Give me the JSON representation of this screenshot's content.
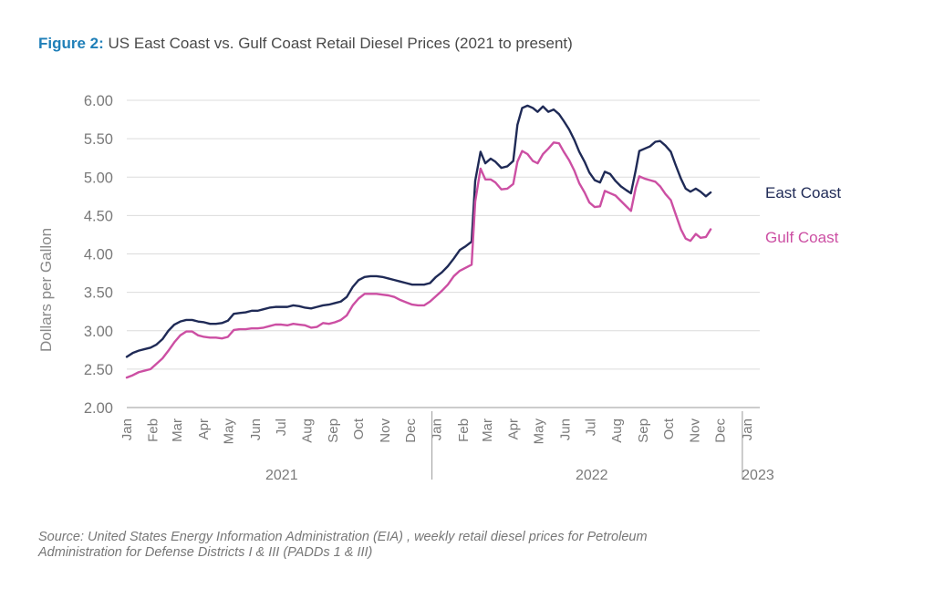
{
  "figure": {
    "label": "Figure 2:",
    "title": "US East Coast vs. Gulf Coast Retail Diesel Prices (2021 to present)"
  },
  "source": {
    "line1": "Source: United States Energy Information Administration (EIA) , weekly retail diesel prices for Petroleum",
    "line2": "Administration for Defense Districts I & III (PADDs 1 & III)"
  },
  "chart_data": {
    "type": "line",
    "title": "US East Coast vs. Gulf Coast Retail Diesel Prices (2021 to present)",
    "ylabel": "Dollars per Gallon",
    "xlabel": "",
    "ylim": [
      2.0,
      6.0
    ],
    "y_ticks": [
      "2.00",
      "2.50",
      "3.00",
      "3.50",
      "4.00",
      "4.50",
      "5.00",
      "5.50",
      "6.00"
    ],
    "grid": "horizontal",
    "legend_placement": "right-end-of-lines",
    "x_unit": "weeks",
    "x_range": [
      0,
      108
    ],
    "month_ticks": [
      {
        "label": "Jan",
        "week": 0
      },
      {
        "label": "Feb",
        "week": 4.4
      },
      {
        "label": "Mar",
        "week": 8.4
      },
      {
        "label": "Apr",
        "week": 12.9
      },
      {
        "label": "May",
        "week": 17.1
      },
      {
        "label": "Jun",
        "week": 21.6
      },
      {
        "label": "Jul",
        "week": 25.9
      },
      {
        "label": "Aug",
        "week": 30.3
      },
      {
        "label": "Sep",
        "week": 34.7
      },
      {
        "label": "Oct",
        "week": 39
      },
      {
        "label": "Nov",
        "week": 43.4
      },
      {
        "label": "Dec",
        "week": 47.7
      },
      {
        "label": "Jan",
        "week": 52.1
      },
      {
        "label": "Feb",
        "week": 56.6
      },
      {
        "label": "Mar",
        "week": 60.6
      },
      {
        "label": "Apr",
        "week": 65
      },
      {
        "label": "May",
        "week": 69.3
      },
      {
        "label": "Jun",
        "week": 73.7
      },
      {
        "label": "Jul",
        "week": 78
      },
      {
        "label": "Aug",
        "week": 82.4
      },
      {
        "label": "Sep",
        "week": 86.8
      },
      {
        "label": "Oct",
        "week": 91.1
      },
      {
        "label": "Nov",
        "week": 95.5
      },
      {
        "label": "Dec",
        "week": 99.8
      },
      {
        "label": "Jan",
        "week": 104.3
      }
    ],
    "year_groups": [
      {
        "label": "2021",
        "start": 0,
        "end": 52.1
      },
      {
        "label": "2022",
        "start": 52.1,
        "end": 104.3
      },
      {
        "label": "2023",
        "start": 104.3,
        "end": 108
      }
    ],
    "series": [
      {
        "name": "East Coast",
        "color": "#1f2a56",
        "points": [
          [
            0,
            2.66
          ],
          [
            1,
            2.71
          ],
          [
            2,
            2.74
          ],
          [
            3,
            2.76
          ],
          [
            4,
            2.78
          ],
          [
            5,
            2.82
          ],
          [
            6,
            2.89
          ],
          [
            7,
            3.0
          ],
          [
            8,
            3.08
          ],
          [
            9,
            3.12
          ],
          [
            10,
            3.14
          ],
          [
            11,
            3.14
          ],
          [
            12,
            3.12
          ],
          [
            13,
            3.11
          ],
          [
            14,
            3.09
          ],
          [
            15,
            3.09
          ],
          [
            16,
            3.1
          ],
          [
            17,
            3.13
          ],
          [
            18,
            3.22
          ],
          [
            19,
            3.23
          ],
          [
            20,
            3.24
          ],
          [
            21,
            3.26
          ],
          [
            22,
            3.26
          ],
          [
            23,
            3.28
          ],
          [
            24,
            3.3
          ],
          [
            25,
            3.31
          ],
          [
            26,
            3.31
          ],
          [
            27,
            3.31
          ],
          [
            28,
            3.33
          ],
          [
            29,
            3.32
          ],
          [
            30,
            3.3
          ],
          [
            31,
            3.29
          ],
          [
            32,
            3.31
          ],
          [
            33,
            3.33
          ],
          [
            34,
            3.34
          ],
          [
            35,
            3.36
          ],
          [
            36,
            3.38
          ],
          [
            37,
            3.44
          ],
          [
            38,
            3.57
          ],
          [
            39,
            3.66
          ],
          [
            40,
            3.7
          ],
          [
            41,
            3.71
          ],
          [
            42,
            3.71
          ],
          [
            43,
            3.7
          ],
          [
            44,
            3.68
          ],
          [
            45,
            3.66
          ],
          [
            46,
            3.64
          ],
          [
            47,
            3.62
          ],
          [
            48,
            3.6
          ],
          [
            49,
            3.6
          ],
          [
            50,
            3.6
          ],
          [
            51,
            3.62
          ],
          [
            52,
            3.7
          ],
          [
            53,
            3.76
          ],
          [
            54,
            3.84
          ],
          [
            55,
            3.94
          ],
          [
            56,
            4.05
          ],
          [
            57,
            4.1
          ],
          [
            58,
            4.16
          ],
          [
            58.6,
            4.95
          ],
          [
            59.5,
            5.33
          ],
          [
            60.3,
            5.18
          ],
          [
            61.2,
            5.24
          ],
          [
            62,
            5.2
          ],
          [
            63,
            5.12
          ],
          [
            64,
            5.14
          ],
          [
            65,
            5.21
          ],
          [
            65.7,
            5.68
          ],
          [
            66.5,
            5.9
          ],
          [
            67.4,
            5.93
          ],
          [
            68.3,
            5.9
          ],
          [
            69.1,
            5.85
          ],
          [
            70,
            5.92
          ],
          [
            70.9,
            5.85
          ],
          [
            71.8,
            5.88
          ],
          [
            72.7,
            5.82
          ],
          [
            73.5,
            5.73
          ],
          [
            74.4,
            5.62
          ],
          [
            75.3,
            5.48
          ],
          [
            76.1,
            5.33
          ],
          [
            77,
            5.2
          ],
          [
            77.8,
            5.06
          ],
          [
            78.7,
            4.96
          ],
          [
            79.6,
            4.93
          ],
          [
            80.4,
            5.07
          ],
          [
            81.3,
            5.04
          ],
          [
            82.2,
            4.95
          ],
          [
            83.1,
            4.88
          ],
          [
            84,
            4.83
          ],
          [
            84.8,
            4.79
          ],
          [
            85.6,
            5.09
          ],
          [
            86.2,
            5.34
          ],
          [
            87.1,
            5.37
          ],
          [
            88,
            5.4
          ],
          [
            88.9,
            5.46
          ],
          [
            89.7,
            5.47
          ],
          [
            90.6,
            5.41
          ],
          [
            91.5,
            5.33
          ],
          [
            92.3,
            5.16
          ],
          [
            93.2,
            4.98
          ],
          [
            94,
            4.85
          ],
          [
            94.8,
            4.81
          ],
          [
            95.7,
            4.85
          ],
          [
            96.5,
            4.81
          ],
          [
            97.4,
            4.75
          ],
          [
            98.2,
            4.8
          ]
        ]
      },
      {
        "name": "Gulf Coast",
        "color": "#cc4fa3",
        "points": [
          [
            0,
            2.39
          ],
          [
            1,
            2.42
          ],
          [
            2,
            2.46
          ],
          [
            3,
            2.48
          ],
          [
            4,
            2.5
          ],
          [
            5,
            2.57
          ],
          [
            6,
            2.64
          ],
          [
            7,
            2.74
          ],
          [
            8,
            2.85
          ],
          [
            9,
            2.94
          ],
          [
            10,
            2.99
          ],
          [
            11,
            2.99
          ],
          [
            12,
            2.94
          ],
          [
            13,
            2.92
          ],
          [
            14,
            2.91
          ],
          [
            15,
            2.91
          ],
          [
            16,
            2.9
          ],
          [
            17,
            2.92
          ],
          [
            18,
            3.01
          ],
          [
            19,
            3.02
          ],
          [
            20,
            3.02
          ],
          [
            21,
            3.03
          ],
          [
            22,
            3.03
          ],
          [
            23,
            3.04
          ],
          [
            24,
            3.06
          ],
          [
            25,
            3.08
          ],
          [
            26,
            3.08
          ],
          [
            27,
            3.07
          ],
          [
            28,
            3.09
          ],
          [
            29,
            3.08
          ],
          [
            30,
            3.07
          ],
          [
            31,
            3.04
          ],
          [
            32,
            3.05
          ],
          [
            33,
            3.1
          ],
          [
            34,
            3.09
          ],
          [
            35,
            3.11
          ],
          [
            36,
            3.14
          ],
          [
            37,
            3.2
          ],
          [
            38,
            3.33
          ],
          [
            39,
            3.42
          ],
          [
            40,
            3.48
          ],
          [
            41,
            3.48
          ],
          [
            42,
            3.48
          ],
          [
            43,
            3.47
          ],
          [
            44,
            3.46
          ],
          [
            45,
            3.44
          ],
          [
            46,
            3.4
          ],
          [
            47,
            3.37
          ],
          [
            48,
            3.34
          ],
          [
            49,
            3.33
          ],
          [
            50,
            3.33
          ],
          [
            51,
            3.38
          ],
          [
            52,
            3.45
          ],
          [
            53,
            3.52
          ],
          [
            54,
            3.6
          ],
          [
            55,
            3.71
          ],
          [
            56,
            3.78
          ],
          [
            57,
            3.82
          ],
          [
            58,
            3.86
          ],
          [
            58.6,
            4.68
          ],
          [
            59.5,
            5.11
          ],
          [
            60.3,
            4.97
          ],
          [
            61.2,
            4.97
          ],
          [
            62,
            4.93
          ],
          [
            63,
            4.84
          ],
          [
            64,
            4.85
          ],
          [
            65,
            4.91
          ],
          [
            65.7,
            5.2
          ],
          [
            66.5,
            5.34
          ],
          [
            67.4,
            5.3
          ],
          [
            68.3,
            5.21
          ],
          [
            69.1,
            5.18
          ],
          [
            70,
            5.3
          ],
          [
            70.9,
            5.37
          ],
          [
            71.8,
            5.45
          ],
          [
            72.7,
            5.44
          ],
          [
            73.5,
            5.33
          ],
          [
            74.4,
            5.22
          ],
          [
            75.3,
            5.08
          ],
          [
            76.1,
            4.92
          ],
          [
            77,
            4.8
          ],
          [
            77.8,
            4.67
          ],
          [
            78.7,
            4.61
          ],
          [
            79.6,
            4.62
          ],
          [
            80.4,
            4.82
          ],
          [
            81.3,
            4.79
          ],
          [
            82.2,
            4.76
          ],
          [
            83.1,
            4.69
          ],
          [
            84,
            4.62
          ],
          [
            84.8,
            4.56
          ],
          [
            85.6,
            4.86
          ],
          [
            86.2,
            5.01
          ],
          [
            87.1,
            4.98
          ],
          [
            88,
            4.96
          ],
          [
            88.9,
            4.94
          ],
          [
            89.7,
            4.88
          ],
          [
            90.6,
            4.78
          ],
          [
            91.5,
            4.7
          ],
          [
            92.3,
            4.52
          ],
          [
            93.2,
            4.32
          ],
          [
            94,
            4.2
          ],
          [
            94.8,
            4.17
          ],
          [
            95.7,
            4.26
          ],
          [
            96.5,
            4.21
          ],
          [
            97.4,
            4.22
          ],
          [
            98.2,
            4.32
          ]
        ]
      }
    ]
  }
}
